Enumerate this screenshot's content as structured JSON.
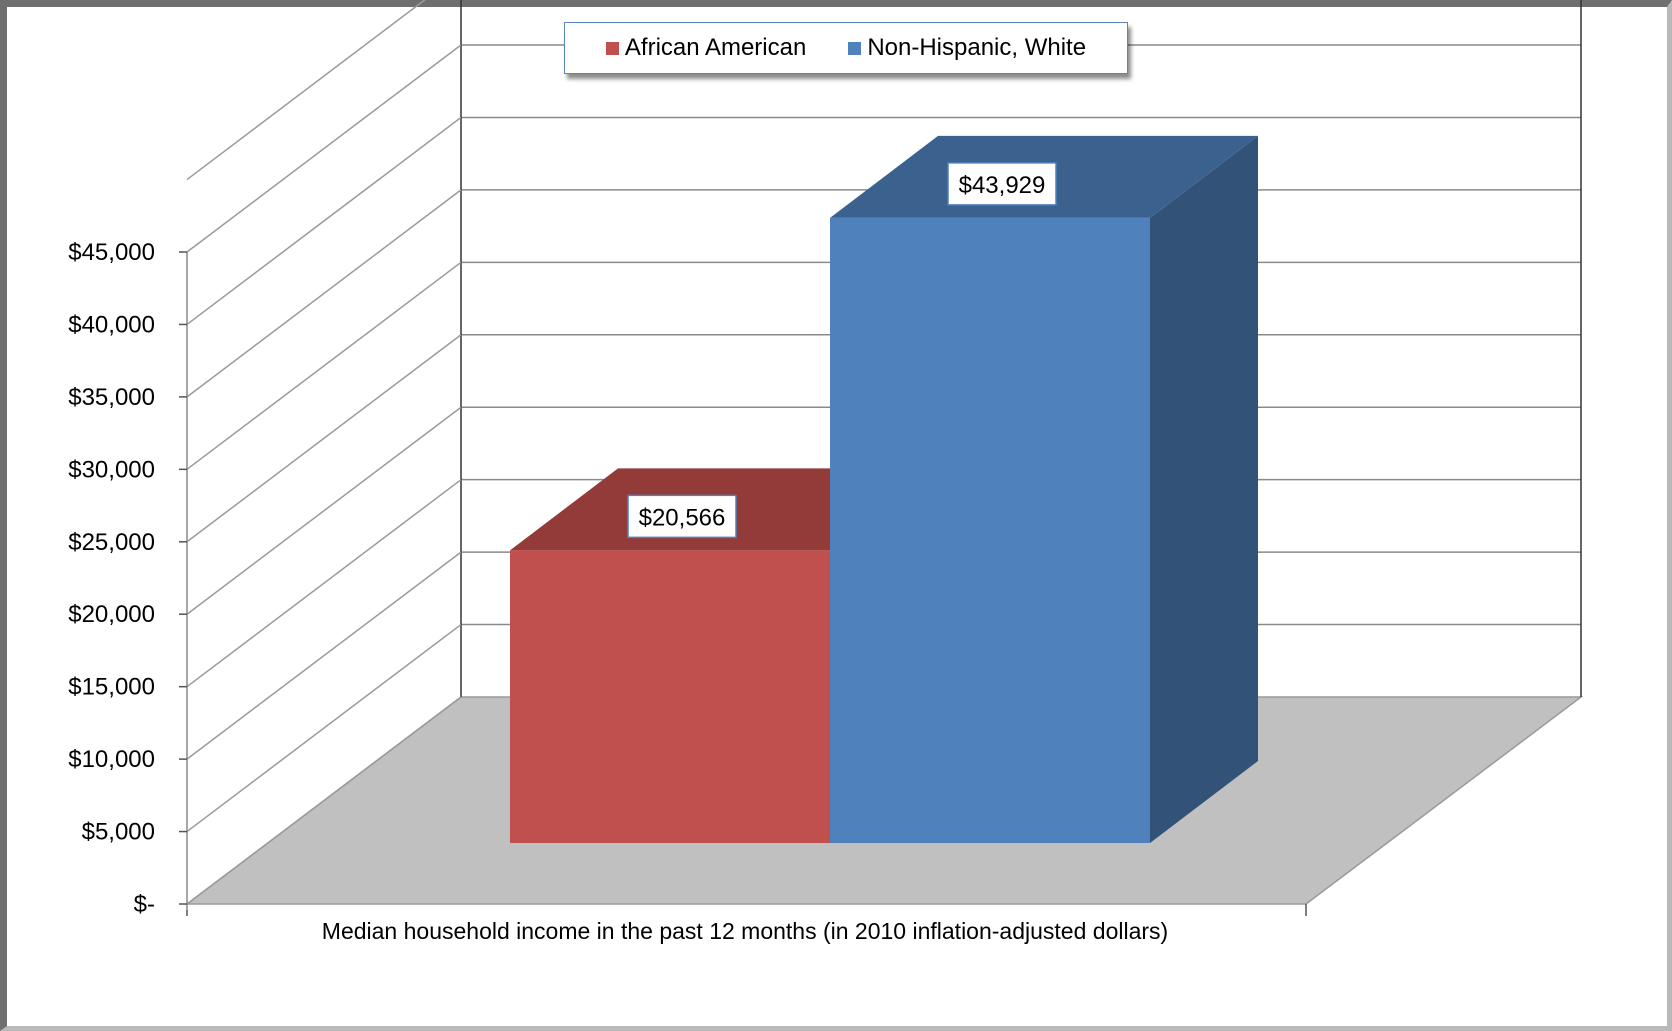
{
  "chart_data": {
    "type": "bar",
    "view": "3d-clustered",
    "categories": [
      "Median household income in the past 12 months (in 2010 inflation-adjusted dollars)"
    ],
    "series": [
      {
        "name": "African American",
        "values": [
          20566
        ],
        "label": "$20,566",
        "color": "#c0504d",
        "top_color": "#923b39"
      },
      {
        "name": "Non-Hispanic, White",
        "values": [
          43929
        ],
        "label": "$43,929",
        "color": "#4f81bd",
        "top_color": "#3b628f",
        "side_color": "#325278"
      }
    ],
    "title": "",
    "xlabel": "Median household income in the past 12 months (in 2010 inflation-adjusted dollars)",
    "ylabel": "",
    "ylim": [
      0,
      45000
    ],
    "yticks": [
      {
        "value": 0,
        "label": "$-"
      },
      {
        "value": 5000,
        "label": "$5,000"
      },
      {
        "value": 10000,
        "label": "$10,000"
      },
      {
        "value": 15000,
        "label": "$15,000"
      },
      {
        "value": 20000,
        "label": "$20,000"
      },
      {
        "value": 25000,
        "label": "$25,000"
      },
      {
        "value": 30000,
        "label": "$30,000"
      },
      {
        "value": 35000,
        "label": "$35,000"
      },
      {
        "value": 40000,
        "label": "$40,000"
      },
      {
        "value": 45000,
        "label": "$45,000"
      }
    ],
    "grid": true,
    "legend": "top-center",
    "colors": {
      "floor": "#c0c0c0",
      "grid": "#8a8a8a",
      "axis": "#555555"
    }
  }
}
